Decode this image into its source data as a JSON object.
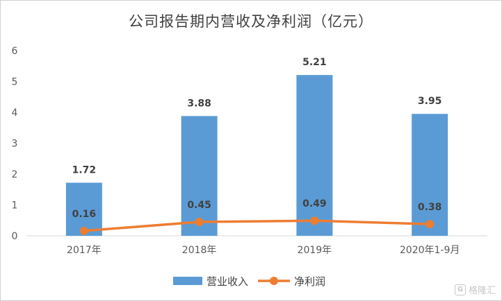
{
  "chart_data": {
    "type": "bar",
    "title": "公司报告期内营收及净利润（亿元）",
    "categories": [
      "2017年",
      "2018年",
      "2019年",
      "2020年1-9月"
    ],
    "series": [
      {
        "name": "营业收入",
        "kind": "bar",
        "color": "#5b9bd5",
        "values": [
          1.72,
          3.88,
          5.21,
          3.95
        ],
        "labels": [
          "1.72",
          "3.88",
          "5.21",
          "3.95"
        ]
      },
      {
        "name": "净利润",
        "kind": "line",
        "color": "#ed7d31",
        "values": [
          0.16,
          0.45,
          0.49,
          0.38
        ],
        "labels": [
          "0.16",
          "0.45",
          "0.49",
          "0.38"
        ]
      }
    ],
    "ylim": [
      0,
      6
    ],
    "yticks": [
      "0",
      "1",
      "2",
      "3",
      "4",
      "5",
      "6"
    ],
    "grid": false,
    "legend": "bottom-center"
  },
  "watermark": {
    "text": "格隆汇",
    "logo": "G"
  }
}
